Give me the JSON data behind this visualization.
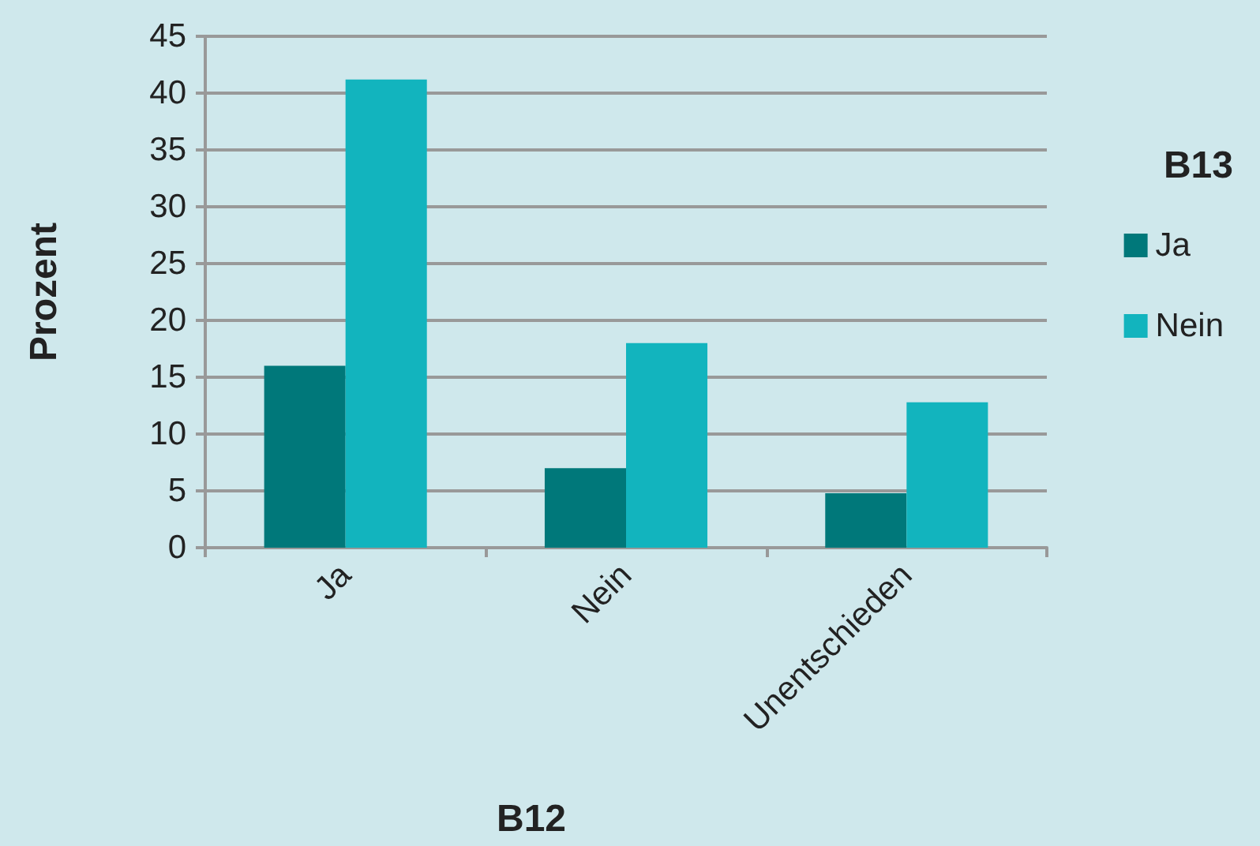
{
  "chart_data": {
    "type": "bar",
    "xlabel": "B12",
    "ylabel": "Prozent",
    "legend_title": "B13",
    "categories": [
      "Ja",
      "Nein",
      "Unentschieden"
    ],
    "series": [
      {
        "name": "Ja",
        "color": "#00787a",
        "values": [
          16,
          7,
          4.8
        ]
      },
      {
        "name": "Nein",
        "color": "#12b4be",
        "values": [
          41.2,
          18,
          12.8
        ]
      }
    ],
    "ylim": [
      0,
      45
    ],
    "yticks": [
      0,
      5,
      10,
      15,
      20,
      25,
      30,
      35,
      40,
      45
    ],
    "grid": "y",
    "legend": "right"
  }
}
